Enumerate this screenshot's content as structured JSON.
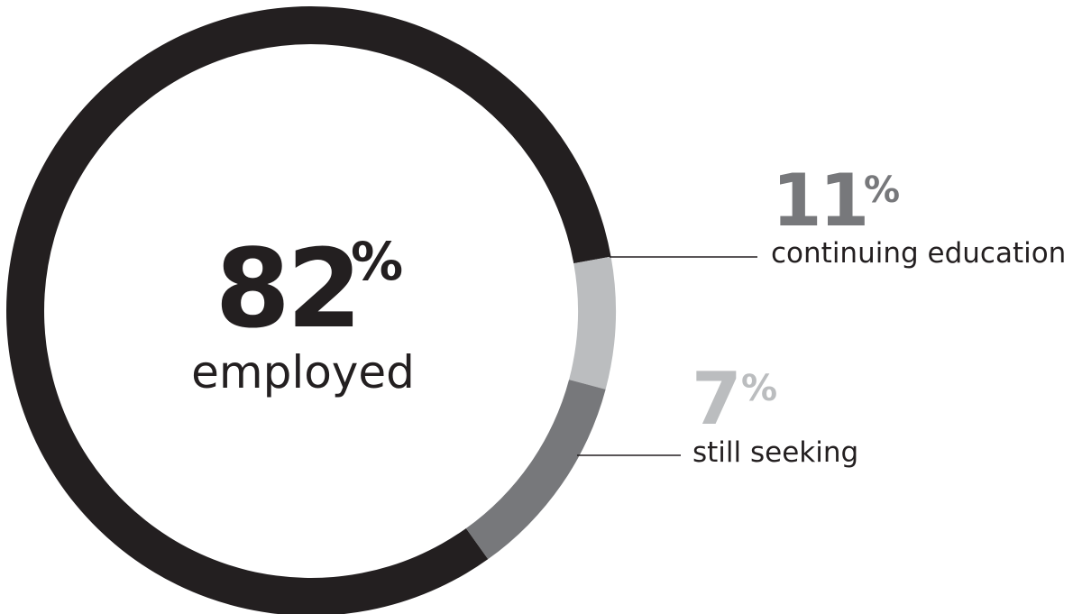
{
  "chart_data": {
    "type": "pie",
    "categories": [
      "employed",
      "continuing education",
      "still seeking"
    ],
    "values": [
      82,
      11,
      7
    ],
    "unit": "%",
    "colors": [
      "#231f20",
      "#77787b",
      "#bbbdbf"
    ],
    "labels": [
      {
        "value": "82",
        "suffix": "%",
        "text": "employed"
      },
      {
        "value": "11",
        "suffix": "%",
        "text": "continuing education"
      },
      {
        "value": "7",
        "suffix": "%",
        "text": "still seeking"
      }
    ]
  }
}
